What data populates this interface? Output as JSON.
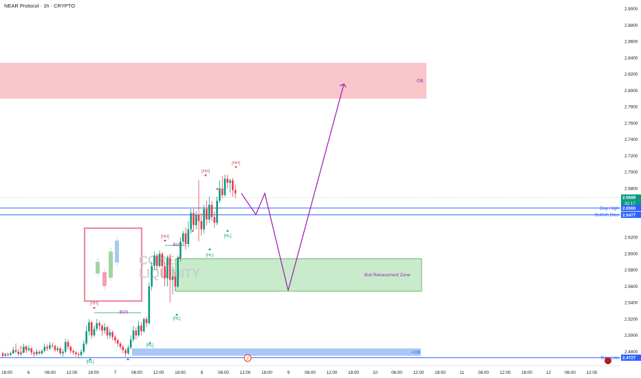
{
  "header": {
    "title": "NEAR Protocol · 1h · CRYPTO"
  },
  "colors": {
    "up": "#089981",
    "down": "#f23645",
    "accent": "#9c27b0",
    "bearish_zone": "#f7c6ca",
    "bull_zone": "#c8ebcb",
    "bullish_ob": "#a9c8f3",
    "level_line": "#2962ff"
  },
  "chart_data": {
    "type": "candlestick",
    "symbol": "NEAR Protocol",
    "interval": "1h",
    "exchange": "CRYPTO",
    "price_axis": {
      "ticks": [
        "2.9000",
        "2.8800",
        "2.8600",
        "2.8400",
        "2.8200",
        "2.8000",
        "2.7800",
        "2.7600",
        "2.7400",
        "2.7200",
        "2.7000",
        "2.6800",
        "2.6200",
        "2.6000",
        "2.5800",
        "2.5600",
        "2.5400",
        "2.5200",
        "2.5000",
        "2.4800"
      ],
      "range": [
        2.462,
        2.912
      ]
    },
    "time_axis": [
      "18:00",
      "6",
      "06:00",
      "12:00",
      "18:00",
      "7",
      "06:00",
      "12:00",
      "18:00",
      "8",
      "06:00",
      "12:00",
      "18:00",
      "9",
      "06:00",
      "12:00",
      "18:00",
      "10",
      "06:00",
      "12:00",
      "18:00",
      "11",
      "06:00",
      "12:00",
      "18:00",
      "12",
      "06:00",
      "12:00"
    ],
    "candles": [
      [
        2.478,
        2.475,
        2.48,
        2.473
      ],
      [
        2.475,
        2.477,
        2.479,
        2.474
      ],
      [
        2.477,
        2.476,
        2.479,
        2.474
      ],
      [
        2.476,
        2.478,
        2.48,
        2.475
      ],
      [
        2.478,
        2.482,
        2.486,
        2.477
      ],
      [
        2.482,
        2.48,
        2.49,
        2.478
      ],
      [
        2.48,
        2.477,
        2.483,
        2.475
      ],
      [
        2.477,
        2.479,
        2.482,
        2.475
      ],
      [
        2.479,
        2.486,
        2.49,
        2.478
      ],
      [
        2.486,
        2.482,
        2.488,
        2.478
      ],
      [
        2.482,
        2.484,
        2.488,
        2.48
      ],
      [
        2.484,
        2.479,
        2.486,
        2.476
      ],
      [
        2.479,
        2.477,
        2.481,
        2.474
      ],
      [
        2.477,
        2.48,
        2.483,
        2.475
      ],
      [
        2.48,
        2.478,
        2.482,
        2.476
      ],
      [
        2.478,
        2.481,
        2.483,
        2.476
      ],
      [
        2.481,
        2.486,
        2.49,
        2.479
      ],
      [
        2.486,
        2.484,
        2.489,
        2.481
      ],
      [
        2.484,
        2.488,
        2.492,
        2.482
      ],
      [
        2.488,
        2.487,
        2.491,
        2.484
      ],
      [
        2.487,
        2.482,
        2.489,
        2.48
      ],
      [
        2.482,
        2.484,
        2.487,
        2.48
      ],
      [
        2.484,
        2.478,
        2.486,
        2.476
      ],
      [
        2.478,
        2.48,
        2.483,
        2.474
      ],
      [
        2.48,
        2.492,
        2.496,
        2.478
      ],
      [
        2.492,
        2.486,
        2.495,
        2.483
      ],
      [
        2.486,
        2.481,
        2.488,
        2.478
      ],
      [
        2.481,
        2.479,
        2.483,
        2.476
      ],
      [
        2.479,
        2.477,
        2.481,
        2.474
      ],
      [
        2.477,
        2.476,
        2.479,
        2.472
      ],
      [
        2.476,
        2.48,
        2.483,
        2.474
      ],
      [
        2.48,
        2.49,
        2.494,
        2.478
      ],
      [
        2.49,
        2.505,
        2.512,
        2.488
      ],
      [
        2.505,
        2.516,
        2.52,
        2.5
      ],
      [
        2.516,
        2.5,
        2.518,
        2.496
      ],
      [
        2.5,
        2.508,
        2.512,
        2.498
      ],
      [
        2.508,
        2.515,
        2.52,
        2.505
      ],
      [
        2.515,
        2.512,
        2.518,
        2.506
      ],
      [
        2.512,
        2.506,
        2.514,
        2.5
      ],
      [
        2.506,
        2.51,
        2.515,
        2.502
      ],
      [
        2.51,
        2.5,
        2.512,
        2.496
      ],
      [
        2.5,
        2.504,
        2.508,
        2.496
      ],
      [
        2.504,
        2.498,
        2.506,
        2.494
      ],
      [
        2.498,
        2.494,
        2.5,
        2.49
      ],
      [
        2.494,
        2.49,
        2.496,
        2.486
      ],
      [
        2.49,
        2.486,
        2.492,
        2.483
      ],
      [
        2.486,
        2.482,
        2.488,
        2.478
      ],
      [
        2.482,
        2.478,
        2.484,
        2.474
      ],
      [
        2.478,
        2.485,
        2.488,
        2.476
      ],
      [
        2.485,
        2.495,
        2.5,
        2.483
      ],
      [
        2.495,
        2.506,
        2.512,
        2.492
      ],
      [
        2.506,
        2.5,
        2.51,
        2.495
      ],
      [
        2.5,
        2.512,
        2.518,
        2.498
      ],
      [
        2.512,
        2.505,
        2.516,
        2.5
      ],
      [
        2.505,
        2.52,
        2.522,
        2.503
      ],
      [
        2.52,
        2.515,
        2.523,
        2.51
      ],
      [
        2.515,
        2.56,
        2.565,
        2.513
      ],
      [
        2.56,
        2.585,
        2.59,
        2.555
      ],
      [
        2.585,
        2.598,
        2.603,
        2.58
      ],
      [
        2.598,
        2.585,
        2.6,
        2.58
      ],
      [
        2.585,
        2.6,
        2.604,
        2.583
      ],
      [
        2.6,
        2.585,
        2.602,
        2.57
      ],
      [
        2.585,
        2.57,
        2.59,
        2.56
      ],
      [
        2.57,
        2.595,
        2.598,
        2.56
      ],
      [
        2.595,
        2.568,
        2.6,
        2.54
      ],
      [
        2.568,
        2.572,
        2.585,
        2.55
      ],
      [
        2.572,
        2.56,
        2.578,
        2.555
      ],
      [
        2.56,
        2.595,
        2.598,
        2.558
      ],
      [
        2.595,
        2.615,
        2.62,
        2.59
      ],
      [
        2.615,
        2.625,
        2.628,
        2.61
      ],
      [
        2.625,
        2.612,
        2.632,
        2.605
      ],
      [
        2.612,
        2.63,
        2.64,
        2.608
      ],
      [
        2.63,
        2.65,
        2.655,
        2.625
      ],
      [
        2.65,
        2.635,
        2.655,
        2.628
      ],
      [
        2.635,
        2.648,
        2.652,
        2.63
      ],
      [
        2.648,
        2.64,
        2.69,
        2.615
      ],
      [
        2.64,
        2.63,
        2.65,
        2.622
      ],
      [
        2.63,
        2.655,
        2.66,
        2.625
      ],
      [
        2.655,
        2.642,
        2.665,
        2.635
      ],
      [
        2.642,
        2.66,
        2.67,
        2.638
      ],
      [
        2.66,
        2.645,
        2.665,
        2.64
      ],
      [
        2.645,
        2.638,
        2.652,
        2.632
      ],
      [
        2.638,
        2.665,
        2.67,
        2.635
      ],
      [
        2.665,
        2.68,
        2.69,
        2.662
      ],
      [
        2.68,
        2.672,
        2.695,
        2.668
      ],
      [
        2.672,
        2.692,
        2.697,
        2.67
      ],
      [
        2.692,
        2.687,
        2.697,
        2.68
      ],
      [
        2.687,
        2.69,
        2.692,
        2.675
      ],
      [
        2.69,
        2.678,
        2.693,
        2.67
      ],
      [
        2.678,
        2.674,
        2.685,
        2.668
      ]
    ],
    "zones": [
      {
        "label": "-OB",
        "type": "bearish_order_block",
        "from": 2.79,
        "to": 2.834
      },
      {
        "label": "Bull Retracement Zone",
        "type": "retracement_zone",
        "from": 2.554,
        "to": 2.594
      },
      {
        "label": "+OB",
        "type": "bullish_order_block",
        "from": 2.475,
        "to": 2.484
      }
    ],
    "levels": [
      {
        "label": "Day High",
        "value": 2.656,
        "tag": "2.6560"
      },
      {
        "label": "Bullish Bias",
        "value": 2.6477,
        "tag": "2.6477"
      },
      {
        "label": "Day Low",
        "value": 2.4727,
        "tag": "2.4727"
      }
    ],
    "last_price": {
      "value": 2.6689,
      "tag": "2.6689",
      "countdown": "32:17"
    },
    "structure_labels": [
      "[LH]",
      "[HH]",
      "[HH]",
      "[HH]",
      "[HH]",
      "[HL]",
      "[HL]",
      "[HL]",
      "[HL]",
      "[HL]",
      "BOS",
      "BOS"
    ],
    "projection": [
      2.674,
      2.648,
      2.674,
      2.555,
      2.808
    ],
    "watermark": [
      "CORE",
      "LIQUIDITY"
    ]
  }
}
